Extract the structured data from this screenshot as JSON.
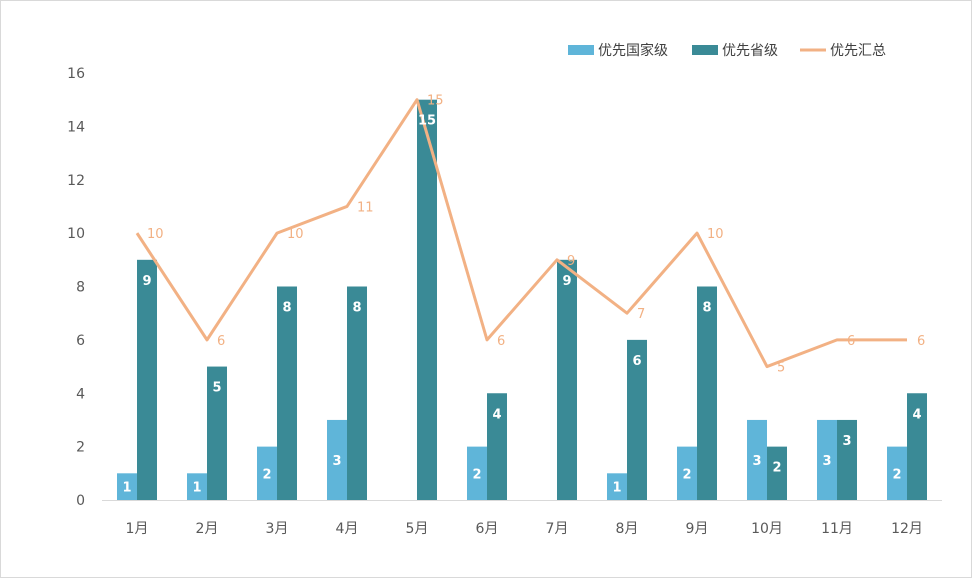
{
  "chart_data": {
    "type": "bar",
    "categories": [
      "1月",
      "2月",
      "3月",
      "4月",
      "5月",
      "6月",
      "7月",
      "8月",
      "9月",
      "10月",
      "11月",
      "12月"
    ],
    "ylim": [
      0,
      16
    ],
    "yticks": [
      "0",
      "2",
      "4",
      "6",
      "8",
      "10",
      "12",
      "14",
      "16"
    ],
    "grid": false,
    "legend_position": "top-right",
    "series": [
      {
        "name": "优先国家级",
        "type": "bar",
        "color": "#5fb5d9",
        "values": [
          1,
          1,
          2,
          3,
          0,
          2,
          0,
          1,
          2,
          3,
          3,
          2
        ],
        "labels": [
          "1",
          "1",
          "2",
          "3",
          "",
          "2",
          "",
          "1",
          "2",
          "3",
          "3",
          "2"
        ]
      },
      {
        "name": "优先省级",
        "type": "bar",
        "color": "#3a8a96",
        "values": [
          9,
          5,
          8,
          8,
          15,
          4,
          9,
          6,
          8,
          2,
          3,
          4
        ],
        "labels": [
          "9",
          "5",
          "8",
          "8",
          "15",
          "4",
          "9",
          "6",
          "8",
          "2",
          "3",
          "4"
        ]
      },
      {
        "name": "优先汇总",
        "type": "line",
        "color": "#f2b184",
        "values": [
          10,
          6,
          10,
          11,
          15,
          6,
          9,
          7,
          10,
          5,
          6,
          6
        ],
        "labels": [
          "10",
          "6",
          "10",
          "11",
          "15",
          "6",
          "9",
          "7",
          "10",
          "5",
          "6",
          "6"
        ]
      }
    ]
  }
}
